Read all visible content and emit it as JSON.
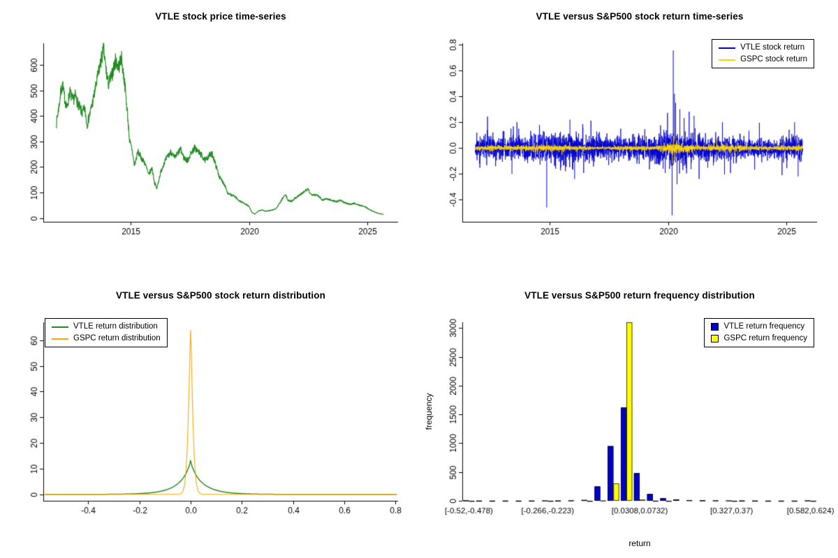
{
  "page": {
    "background": "#ffffff"
  },
  "charts": {
    "price": {
      "title": "VTLE stock price time-series",
      "type": "line",
      "color": "#228B22",
      "x_range": [
        2011.3,
        2026.3
      ],
      "y_range": [
        -15,
        685
      ],
      "x_ticks": [
        {
          "v": 2015,
          "label": "2015"
        },
        {
          "v": 2020,
          "label": "2020"
        },
        {
          "v": 2025,
          "label": "2025"
        }
      ],
      "y_ticks": [
        {
          "v": 0,
          "label": "0"
        },
        {
          "v": 100,
          "label": "100"
        },
        {
          "v": 200,
          "label": "200"
        },
        {
          "v": 300,
          "label": "300"
        },
        {
          "v": 400,
          "label": "400"
        },
        {
          "v": 500,
          "label": "500"
        },
        {
          "v": 600,
          "label": "600"
        }
      ],
      "anchors": [
        [
          2011.85,
          370
        ],
        [
          2011.95,
          430
        ],
        [
          2012.05,
          500
        ],
        [
          2012.12,
          520
        ],
        [
          2012.2,
          470
        ],
        [
          2012.3,
          430
        ],
        [
          2012.42,
          495
        ],
        [
          2012.55,
          460
        ],
        [
          2012.65,
          480
        ],
        [
          2012.8,
          440
        ],
        [
          2012.95,
          410
        ],
        [
          2013.05,
          430
        ],
        [
          2013.15,
          365
        ],
        [
          2013.3,
          420
        ],
        [
          2013.45,
          480
        ],
        [
          2013.6,
          555
        ],
        [
          2013.75,
          620
        ],
        [
          2013.85,
          660
        ],
        [
          2013.95,
          580
        ],
        [
          2014.05,
          525
        ],
        [
          2014.2,
          560
        ],
        [
          2014.35,
          615
        ],
        [
          2014.5,
          595
        ],
        [
          2014.6,
          630
        ],
        [
          2014.75,
          520
        ],
        [
          2014.85,
          420
        ],
        [
          2014.95,
          300
        ],
        [
          2015.05,
          270
        ],
        [
          2015.15,
          205
        ],
        [
          2015.3,
          260
        ],
        [
          2015.45,
          235
        ],
        [
          2015.6,
          215
        ],
        [
          2015.75,
          170
        ],
        [
          2015.9,
          195
        ],
        [
          2016.0,
          140
        ],
        [
          2016.1,
          115
        ],
        [
          2016.25,
          175
        ],
        [
          2016.4,
          215
        ],
        [
          2016.55,
          240
        ],
        [
          2016.7,
          260
        ],
        [
          2016.85,
          235
        ],
        [
          2017.0,
          255
        ],
        [
          2017.1,
          270
        ],
        [
          2017.25,
          235
        ],
        [
          2017.4,
          225
        ],
        [
          2017.55,
          255
        ],
        [
          2017.7,
          275
        ],
        [
          2017.85,
          260
        ],
        [
          2018.0,
          245
        ],
        [
          2018.15,
          225
        ],
        [
          2018.3,
          245
        ],
        [
          2018.45,
          250
        ],
        [
          2018.6,
          205
        ],
        [
          2018.75,
          160
        ],
        [
          2018.9,
          140
        ],
        [
          2019.0,
          125
        ],
        [
          2019.1,
          95
        ],
        [
          2019.25,
          90
        ],
        [
          2019.4,
          85
        ],
        [
          2019.55,
          70
        ],
        [
          2019.7,
          62
        ],
        [
          2019.85,
          55
        ],
        [
          2020.0,
          45
        ],
        [
          2020.12,
          22
        ],
        [
          2020.25,
          15
        ],
        [
          2020.4,
          28
        ],
        [
          2020.55,
          32
        ],
        [
          2020.7,
          26
        ],
        [
          2020.85,
          29
        ],
        [
          2021.0,
          31
        ],
        [
          2021.15,
          38
        ],
        [
          2021.3,
          58
        ],
        [
          2021.45,
          82
        ],
        [
          2021.55,
          90
        ],
        [
          2021.65,
          68
        ],
        [
          2021.8,
          66
        ],
        [
          2021.95,
          78
        ],
        [
          2022.1,
          88
        ],
        [
          2022.25,
          97
        ],
        [
          2022.4,
          108
        ],
        [
          2022.5,
          112
        ],
        [
          2022.6,
          94
        ],
        [
          2022.75,
          92
        ],
        [
          2022.9,
          88
        ],
        [
          2023.0,
          82
        ],
        [
          2023.1,
          70
        ],
        [
          2023.25,
          76
        ],
        [
          2023.4,
          72
        ],
        [
          2023.55,
          68
        ],
        [
          2023.7,
          64
        ],
        [
          2023.85,
          70
        ],
        [
          2024.0,
          62
        ],
        [
          2024.15,
          56
        ],
        [
          2024.3,
          54
        ],
        [
          2024.45,
          58
        ],
        [
          2024.6,
          52
        ],
        [
          2024.75,
          48
        ],
        [
          2024.9,
          44
        ],
        [
          2025.05,
          36
        ],
        [
          2025.2,
          28
        ],
        [
          2025.35,
          22
        ],
        [
          2025.5,
          17
        ],
        [
          2025.65,
          15
        ],
        [
          2025.7,
          14
        ]
      ]
    },
    "returns": {
      "title": "VTLE versus S&P500 stock return time-series",
      "type": "line",
      "x_range": [
        2011.3,
        2026.3
      ],
      "y_range": [
        -0.57,
        0.81
      ],
      "x_data_range": [
        2011.85,
        2025.7
      ],
      "x_ticks": [
        {
          "v": 2015,
          "label": "2015"
        },
        {
          "v": 2020,
          "label": "2020"
        },
        {
          "v": 2025,
          "label": "2025"
        }
      ],
      "y_ticks": [
        {
          "v": -0.4,
          "label": "-0.4"
        },
        {
          "v": -0.2,
          "label": "-0.2"
        },
        {
          "v": 0,
          "label": "0.0"
        },
        {
          "v": 0.2,
          "label": "0.2"
        },
        {
          "v": 0.4,
          "label": "0.4"
        },
        {
          "v": 0.6,
          "label": "0.6"
        },
        {
          "v": 0.8,
          "label": "0.8"
        }
      ],
      "legend": [
        {
          "label": "VTLE stock return",
          "color": "#0000CD"
        },
        {
          "label": "GSPC stock return",
          "color": "#FFD700"
        }
      ],
      "series": [
        {
          "name": "VTLE stock return",
          "color": "#0000CD",
          "seed": 11,
          "tail_prob": 0.04,
          "tail_mult": 2.4,
          "clamp": 0.3,
          "vol_anchors": [
            [
              2011.85,
              0.04
            ],
            [
              2014.0,
              0.045
            ],
            [
              2014.9,
              0.06
            ],
            [
              2016.3,
              0.055
            ],
            [
              2017.5,
              0.04
            ],
            [
              2019.0,
              0.045
            ],
            [
              2020.1,
              0.07
            ],
            [
              2020.6,
              0.06
            ],
            [
              2021.5,
              0.05
            ],
            [
              2022.5,
              0.045
            ],
            [
              2023.5,
              0.035
            ],
            [
              2024.5,
              0.035
            ],
            [
              2025.7,
              0.05
            ]
          ],
          "spikes": [
            [
              2013.4,
              -0.2
            ],
            [
              2014.87,
              -0.46
            ],
            [
              2015.85,
              0.22
            ],
            [
              2016.05,
              -0.24
            ],
            [
              2020.17,
              -0.52
            ],
            [
              2020.22,
              0.755
            ],
            [
              2020.27,
              0.42
            ],
            [
              2020.32,
              0.35
            ],
            [
              2020.38,
              -0.28
            ],
            [
              2020.5,
              0.3
            ],
            [
              2021.1,
              0.25
            ],
            [
              2022.3,
              0.2
            ],
            [
              2025.35,
              0.2
            ],
            [
              2025.5,
              -0.22
            ]
          ]
        },
        {
          "name": "GSPC stock return",
          "color": "#FFD700",
          "seed": 23,
          "tail_prob": 0.05,
          "tail_mult": 2.0,
          "clamp": 0.08,
          "vol_anchors": [
            [
              2011.85,
              0.008
            ],
            [
              2015.5,
              0.01
            ],
            [
              2017.3,
              0.004
            ],
            [
              2018.3,
              0.009
            ],
            [
              2019.5,
              0.007
            ],
            [
              2020.2,
              0.025
            ],
            [
              2020.7,
              0.014
            ],
            [
              2021.5,
              0.008
            ],
            [
              2022.5,
              0.013
            ],
            [
              2023.5,
              0.008
            ],
            [
              2025.7,
              0.009
            ]
          ],
          "spikes": [
            [
              2020.18,
              -0.12
            ],
            [
              2020.23,
              0.093
            ],
            [
              2020.28,
              -0.09
            ]
          ]
        }
      ]
    },
    "density": {
      "title": "VTLE versus S&P500 stock return distribution",
      "type": "line",
      "x_range": [
        -0.575,
        0.81
      ],
      "y_range": [
        -2.5,
        67
      ],
      "x_ticks": [
        {
          "v": -0.4,
          "label": "-0.4"
        },
        {
          "v": -0.2,
          "label": "-0.2"
        },
        {
          "v": 0,
          "label": "0.0"
        },
        {
          "v": 0.2,
          "label": "0.2"
        },
        {
          "v": 0.4,
          "label": "0.4"
        },
        {
          "v": 0.6,
          "label": "0.6"
        },
        {
          "v": 0.8,
          "label": "0.8"
        }
      ],
      "y_ticks": [
        {
          "v": 0,
          "label": "0"
        },
        {
          "v": 10,
          "label": "10"
        },
        {
          "v": 20,
          "label": "20"
        },
        {
          "v": 30,
          "label": "30"
        },
        {
          "v": 40,
          "label": "40"
        },
        {
          "v": 50,
          "label": "50"
        },
        {
          "v": 60,
          "label": "60"
        }
      ],
      "legend": [
        {
          "label": "VTLE return distribution",
          "color": "#228B22"
        },
        {
          "label": "GSPC return distribution",
          "color": "#FFA500"
        }
      ],
      "series": [
        {
          "name": "VTLE return distribution",
          "color": "#228B22",
          "center": 0,
          "peak": 13.2,
          "width": 0.042,
          "shape": 0.85,
          "line_width": 1.5
        },
        {
          "name": "GSPC return distribution",
          "color": "#FFA500",
          "center": 0,
          "peak": 64,
          "width": 0.011,
          "shape": 1.35,
          "line_width": 1.1
        }
      ]
    },
    "histogram": {
      "title": "VTLE versus S&P500 return frequency distribution",
      "type": "bar",
      "xlabel": "return",
      "ylabel": "frequency",
      "y_range": [
        0,
        3100
      ],
      "y_ticks": [
        {
          "v": 0,
          "label": "0"
        },
        {
          "v": 500,
          "label": "500"
        },
        {
          "v": 1000,
          "label": "1000"
        },
        {
          "v": 1500,
          "label": "1500"
        },
        {
          "v": 2000,
          "label": "2000"
        },
        {
          "v": 2500,
          "label": "2500"
        },
        {
          "v": 3000,
          "label": "3000"
        }
      ],
      "bins": 27,
      "x_tick_bins": [
        {
          "bin": 0,
          "label": "[-0.52,-0.478)"
        },
        {
          "bin": 6,
          "label": "[-0.266,-0.223)"
        },
        {
          "bin": 13,
          "label": "[0.0308,0.0732)"
        },
        {
          "bin": 20,
          "label": "[0.327,0.37)"
        },
        {
          "bin": 26,
          "label": "[0.582,0.624)"
        }
      ],
      "legend": [
        {
          "label": "VTLE return frequency",
          "color": "#0000CD"
        },
        {
          "label": "GSPC return frequency",
          "color": "#FFFF00"
        }
      ],
      "series": [
        {
          "name": "VTLE return frequency",
          "color": "#0000CD",
          "values": [
            8,
            3,
            2,
            3,
            2,
            3,
            5,
            4,
            6,
            15,
            250,
            950,
            1620,
            480,
            120,
            45,
            22,
            12,
            8,
            6,
            5,
            4,
            3,
            2,
            2,
            2,
            6
          ]
        },
        {
          "name": "GSPC return frequency",
          "color": "#FFFF00",
          "values": [
            1,
            0,
            0,
            0,
            0,
            0,
            1,
            0,
            0,
            1,
            5,
            300,
            3300,
            20,
            3,
            1,
            0,
            0,
            0,
            0,
            1,
            0,
            0,
            0,
            0,
            0,
            1
          ]
        }
      ]
    }
  }
}
